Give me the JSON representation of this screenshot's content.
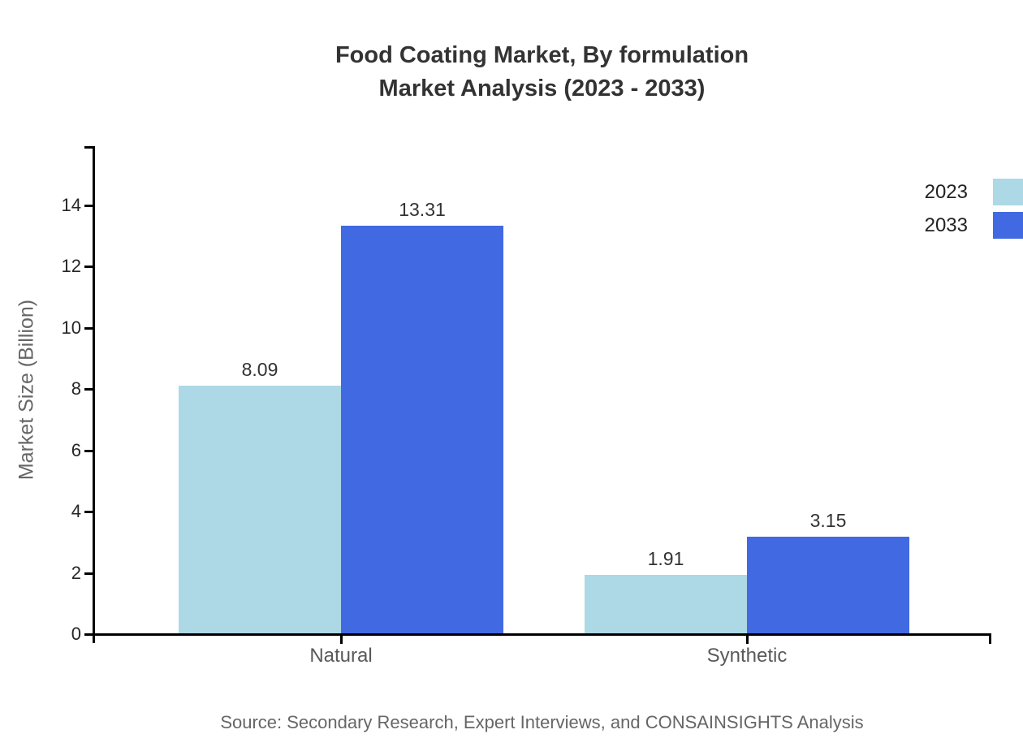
{
  "chart_data": {
    "type": "bar",
    "title_lines": [
      "Food Coating Market, By formulation",
      "Market Analysis (2023 - 2033)"
    ],
    "categories": [
      "Natural",
      "Synthetic"
    ],
    "series": [
      {
        "name": "2023",
        "color": "#ADD8E6",
        "values": [
          8.09,
          1.91
        ]
      },
      {
        "name": "2033",
        "color": "#4169E1",
        "values": [
          13.31,
          3.15
        ]
      }
    ],
    "xlabel": "",
    "ylabel": "Market Size (Billion)",
    "ylim": [
      0,
      15.9
    ],
    "yticks": [
      0,
      2,
      4,
      6,
      8,
      10,
      12,
      14
    ],
    "grid": false,
    "legend_position": "top-right",
    "value_label_decimals": 2,
    "source": "Source: Secondary Research, Expert Interviews, and CONSAINSIGHTS Analysis",
    "colors": {
      "axis": "#000000",
      "title": "#333333",
      "tick_label": "#262626",
      "category_label": "#595959",
      "axis_title": "#666666",
      "value_label": "#333333",
      "legend_label": "#222222",
      "background": "#ffffff"
    }
  }
}
